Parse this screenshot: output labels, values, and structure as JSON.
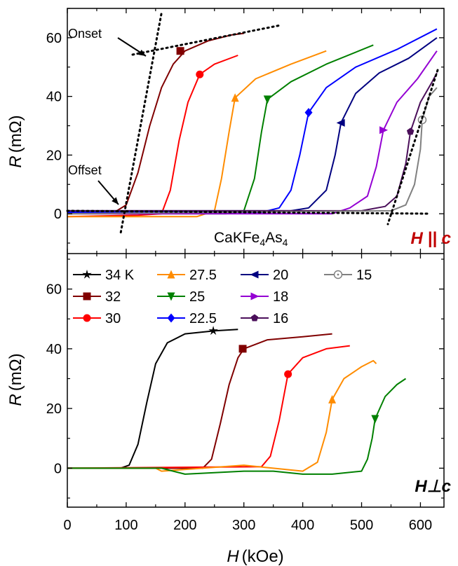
{
  "x_axis_label": {
    "var": "H",
    "unit": "(kOe)"
  },
  "y_axis_label": {
    "var": "R",
    "unit": "(mΩ)"
  },
  "x_ticks": [
    "0",
    "100",
    "200",
    "300",
    "400",
    "500",
    "600"
  ],
  "top_panel": {
    "sample_label": {
      "base": "CaKFe",
      "sub1": "4",
      "mid": "As",
      "sub2": "4"
    },
    "field_label": "H || c",
    "annotations": {
      "onset": "Onset",
      "offset": "Offset"
    },
    "y_ticks": [
      "0",
      "20",
      "40",
      "60"
    ]
  },
  "bottom_panel": {
    "field_label": "H⊥c",
    "y_ticks": [
      "0",
      "20",
      "40",
      "60"
    ],
    "legend": [
      "34 K",
      "32",
      "30",
      "27.5",
      "25",
      "22.5",
      "20",
      "18",
      "16",
      "15"
    ]
  },
  "colors": {
    "34": "#000000",
    "32": "#800000",
    "30": "#ff0000",
    "27.5": "#ff8c00",
    "25": "#008000",
    "22.5": "#0000ff",
    "20": "#000080",
    "18": "#9400d3",
    "16": "#4b0f5a",
    "15": "#808080",
    "field_label_top": "#c00000"
  },
  "chart_data": [
    {
      "type": "line",
      "panel": "top",
      "field_orientation": "H || c",
      "xlabel": "H (kOe)",
      "ylabel": "R (mΩ)",
      "xlim": [
        0,
        640
      ],
      "ylim": [
        -10,
        70
      ],
      "series": [
        {
          "name": "32",
          "marker": "square",
          "marker_at": [
            192,
            55.5
          ],
          "points": [
            [
              0,
              0.5
            ],
            [
              80,
              0.5
            ],
            [
              100,
              3
            ],
            [
              120,
              14
            ],
            [
              140,
              30
            ],
            [
              160,
              43
            ],
            [
              180,
              51
            ],
            [
              200,
              55.5
            ],
            [
              240,
              59
            ],
            [
              280,
              61
            ],
            [
              300,
              61.5
            ]
          ]
        },
        {
          "name": "30",
          "marker": "circle",
          "marker_at": [
            225,
            47.5
          ],
          "points": [
            [
              0,
              -1
            ],
            [
              120,
              -0.5
            ],
            [
              160,
              0
            ],
            [
              175,
              8
            ],
            [
              190,
              25
            ],
            [
              205,
              38
            ],
            [
              225,
              47.5
            ],
            [
              250,
              51
            ],
            [
              290,
              54
            ]
          ]
        },
        {
          "name": "27.5",
          "marker": "triangle-up",
          "marker_at": [
            285,
            39.5
          ],
          "points": [
            [
              0,
              -1
            ],
            [
              220,
              -1
            ],
            [
              250,
              1
            ],
            [
              262,
              12
            ],
            [
              275,
              28
            ],
            [
              285,
              39.5
            ],
            [
              320,
              46
            ],
            [
              380,
              51
            ],
            [
              440,
              55.5
            ]
          ]
        },
        {
          "name": "25",
          "marker": "triangle-down",
          "marker_at": [
            340,
            39
          ],
          "points": [
            [
              0,
              0
            ],
            [
              270,
              0
            ],
            [
              300,
              1
            ],
            [
              318,
              12
            ],
            [
              330,
              28
            ],
            [
              340,
              39
            ],
            [
              380,
              45
            ],
            [
              440,
              51
            ],
            [
              520,
              57.5
            ]
          ]
        },
        {
          "name": "22.5",
          "marker": "diamond",
          "marker_at": [
            410,
            34.5
          ],
          "points": [
            [
              0,
              0.5
            ],
            [
              330,
              0.5
            ],
            [
              360,
              2
            ],
            [
              380,
              8
            ],
            [
              395,
              20
            ],
            [
              410,
              34.5
            ],
            [
              440,
              43
            ],
            [
              490,
              50
            ],
            [
              560,
              56
            ],
            [
              628,
              63
            ]
          ]
        },
        {
          "name": "20",
          "marker": "triangle-left",
          "marker_at": [
            465,
            31
          ],
          "points": [
            [
              0,
              1
            ],
            [
              380,
              1
            ],
            [
              410,
              2
            ],
            [
              440,
              8
            ],
            [
              455,
              20
            ],
            [
              465,
              31
            ],
            [
              490,
              41
            ],
            [
              530,
              48
            ],
            [
              580,
              53
            ],
            [
              628,
              60
            ]
          ]
        },
        {
          "name": "18",
          "marker": "triangle-right",
          "marker_at": [
            537,
            28.5
          ],
          "points": [
            [
              0,
              0
            ],
            [
              450,
              0
            ],
            [
              480,
              2
            ],
            [
              510,
              6
            ],
            [
              525,
              16
            ],
            [
              537,
              28.5
            ],
            [
              560,
              38
            ],
            [
              595,
              46
            ],
            [
              628,
              55.5
            ]
          ]
        },
        {
          "name": "16",
          "marker": "pentagon",
          "marker_at": [
            583,
            28
          ],
          "points": [
            [
              0,
              1
            ],
            [
              500,
              1
            ],
            [
              540,
              2.5
            ],
            [
              560,
              6
            ],
            [
              575,
              17
            ],
            [
              583,
              28
            ],
            [
              600,
              38
            ],
            [
              620,
              45
            ],
            [
              628,
              48
            ]
          ]
        },
        {
          "name": "15",
          "marker": "circle-open",
          "marker_at": [
            603,
            32
          ],
          "points": [
            [
              0,
              0
            ],
            [
              550,
              1
            ],
            [
              575,
              3
            ],
            [
              590,
              10
            ],
            [
              600,
              22
            ],
            [
              603,
              32
            ],
            [
              615,
              40
            ],
            [
              628,
              43
            ]
          ]
        }
      ]
    },
    {
      "type": "line",
      "panel": "bottom",
      "field_orientation": "H⊥c",
      "xlabel": "H (kOe)",
      "ylabel": "R (mΩ)",
      "xlim": [
        0,
        640
      ],
      "ylim": [
        -10,
        70
      ],
      "series": [
        {
          "name": "34 K",
          "marker": "star",
          "marker_at": [
            248,
            46
          ],
          "points": [
            [
              0,
              0
            ],
            [
              90,
              0
            ],
            [
              105,
              1
            ],
            [
              120,
              8
            ],
            [
              135,
              22
            ],
            [
              150,
              35
            ],
            [
              170,
              42
            ],
            [
              200,
              45
            ],
            [
              250,
              46
            ],
            [
              290,
              46.5
            ]
          ]
        },
        {
          "name": "32",
          "marker": "square",
          "marker_at": [
            298,
            40
          ],
          "points": [
            [
              0,
              0
            ],
            [
              230,
              0
            ],
            [
              245,
              3
            ],
            [
              260,
              15
            ],
            [
              275,
              28
            ],
            [
              290,
              37
            ],
            [
              300,
              40
            ],
            [
              340,
              43
            ],
            [
              400,
              44
            ],
            [
              450,
              45
            ]
          ]
        },
        {
          "name": "30",
          "marker": "circle",
          "marker_at": [
            375,
            31.5
          ],
          "points": [
            [
              0,
              0
            ],
            [
              330,
              0.5
            ],
            [
              345,
              4
            ],
            [
              360,
              16
            ],
            [
              375,
              31.5
            ],
            [
              400,
              37
            ],
            [
              440,
              40
            ],
            [
              480,
              41
            ]
          ]
        },
        {
          "name": "27.5",
          "marker": "triangle-up",
          "marker_at": [
            450,
            23
          ],
          "points": [
            [
              0,
              0
            ],
            [
              150,
              0
            ],
            [
              160,
              -1
            ],
            [
              300,
              1
            ],
            [
              400,
              -1
            ],
            [
              425,
              2
            ],
            [
              440,
              12
            ],
            [
              450,
              23
            ],
            [
              470,
              30
            ],
            [
              500,
              34
            ],
            [
              520,
              36
            ],
            [
              525,
              35
            ]
          ]
        },
        {
          "name": "25",
          "marker": "triangle-down",
          "marker_at": [
            523,
            16.5
          ],
          "points": [
            [
              0,
              0
            ],
            [
              160,
              0
            ],
            [
              200,
              -2
            ],
            [
              300,
              -1
            ],
            [
              350,
              -1
            ],
            [
              400,
              -2
            ],
            [
              450,
              -2
            ],
            [
              500,
              -1
            ],
            [
              510,
              3
            ],
            [
              518,
              10
            ],
            [
              523,
              16.5
            ],
            [
              540,
              24
            ],
            [
              560,
              28
            ],
            [
              575,
              30
            ]
          ]
        }
      ]
    }
  ]
}
